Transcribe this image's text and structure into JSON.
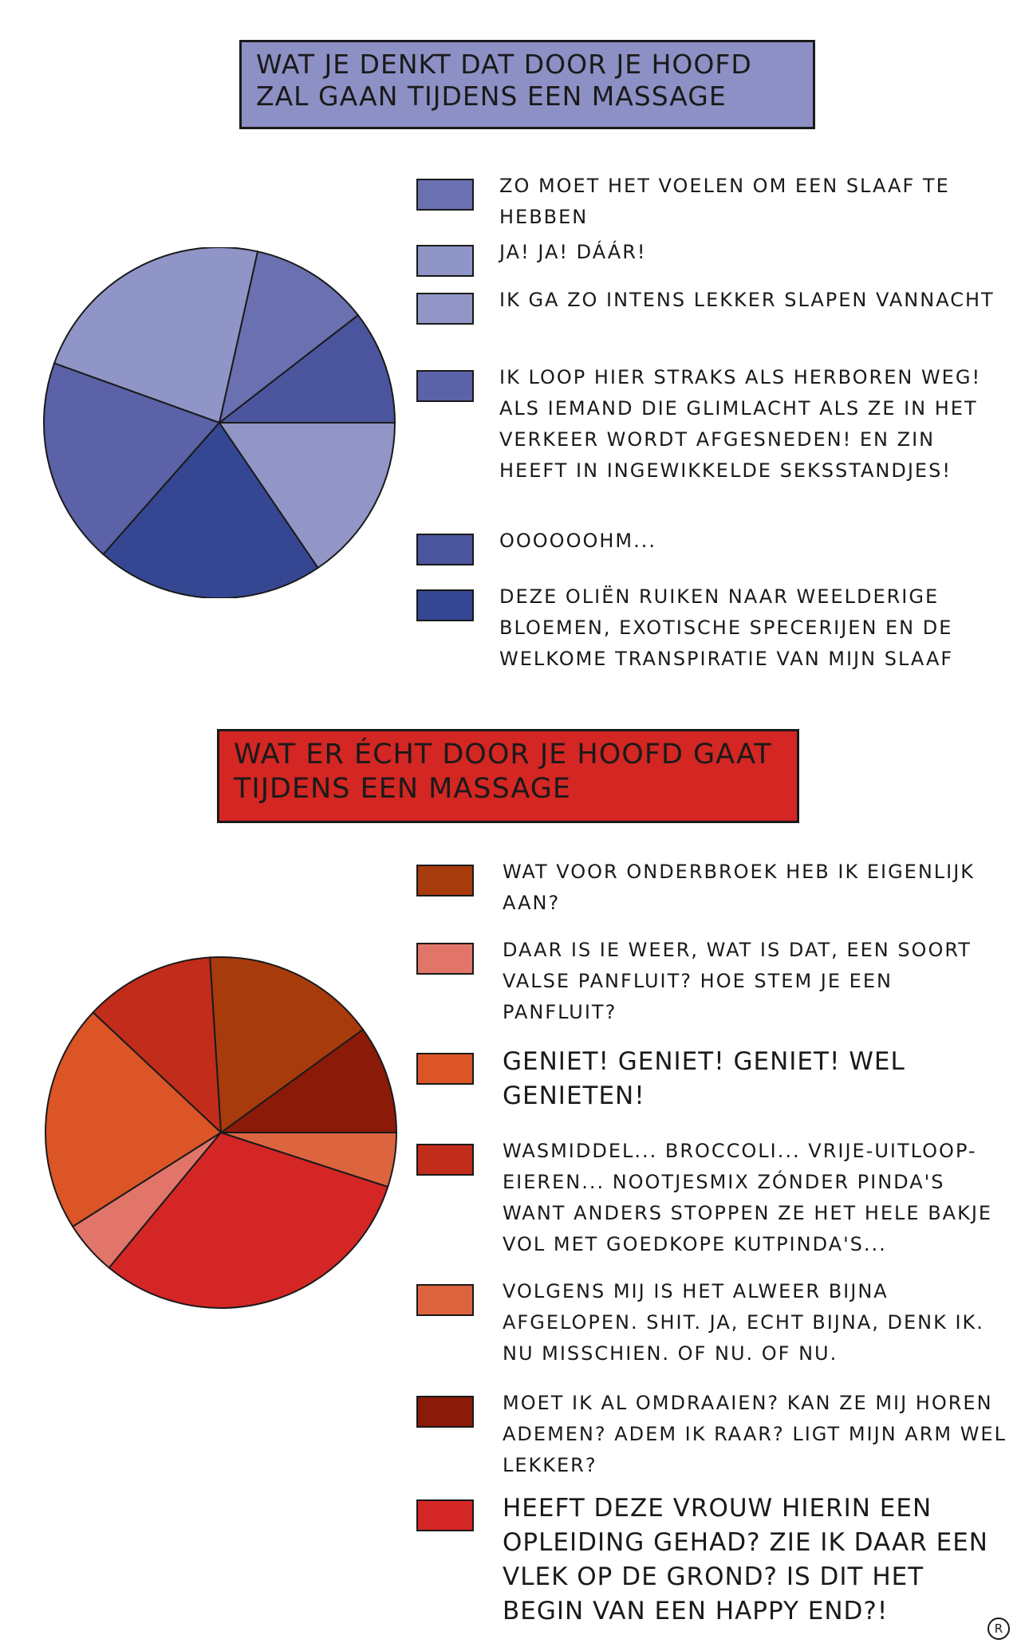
{
  "chart_data": [
    {
      "type": "pie",
      "title": "WAT JE DENKT DAT DOOR JE HOOFD ZAL GAAN TIJDENS EEN MASSAGE",
      "slices": [
        {
          "label": "ZO MOET HET VOELEN OM EEN SLAAF TE HEBBEN",
          "value": 11,
          "color": "#6a70b0"
        },
        {
          "label": "JA! JA! DÁÁR!",
          "value": 23,
          "color": "#8f95c6"
        },
        {
          "label": "IK GA ZO INTENS LEKKER SLAPEN VANNACHT",
          "value": 15.5,
          "color": "#9196c7"
        },
        {
          "label": "IK LOOP HIER STRAKS ALS HERBOREN WEG! ALS IEMAND DIE GLIMLACHT ALS ZE IN HET VERKEER WORDT AFGESNEDEN! EN ZIN HEEFT IN INGEWIKKELDE SEKSSTANDJES!",
          "value": 19,
          "color": "#5b62a7"
        },
        {
          "label": "OOOOOOHM...",
          "value": 10.5,
          "color": "#4b559e"
        },
        {
          "label": "DEZE OLIËN RUIKEN NAAR WEELDERIGE BLOEMEN, EXOTISCHE SPECERIJEN EN DE WELKOME TRANSPIRATIE VAN MIJN SLAAF",
          "value": 21,
          "color": "#354792"
        }
      ]
    },
    {
      "type": "pie",
      "title": "WAT ER ÉCHT DOOR JE HOOFD GAAT TIJDENS EEN MASSAGE",
      "slices": [
        {
          "label": "WAT VOOR ONDERBROEK HEB IK EIGENLIJK AAN?",
          "value": 16,
          "color": "#a83b0c"
        },
        {
          "label": "DAAR IS IE WEER, WAT IS DAT, EEN SOORT VALSE PANFLUIT? HOE STEM JE EEN PANFLUIT?",
          "value": 5,
          "color": "#e1756a"
        },
        {
          "label": "GENIET! GENIET! GENIET! WEL GENIETEN!",
          "value": 21,
          "color": "#db5527"
        },
        {
          "label": "WASMIDDEL... BROCCOLI... VRIJE-UITLOOP-EIEREN... NOOTJESMIX ZÓNDER PINDA'S WANT ANDERS STOPPEN ZE HET HELE BAKJE VOL MET GOEDKOPE KUTPINDA'S...",
          "value": 12,
          "color": "#c12d1a"
        },
        {
          "label": "VOLGENS MIJ IS HET ALWEER BIJNA AFGELOPEN. SHIT. JA, ECHT BIJNA, DENK IK. NU MISSCHIEN. OF NU. OF NU.",
          "value": 5,
          "color": "#dc6540"
        },
        {
          "label": "MOET IK AL OMDRAAIEN? KAN ZE MIJ HOREN ADEMEN? ADEM IK RAAR? LIGT MIJN ARM WEL LEKKER?",
          "value": 10,
          "color": "#8b1a09"
        },
        {
          "label": "HEEFT DEZE VROUW HIERIN EEN OPLEIDING GEHAD? ZIE IK DAAR EEN VLEK OP DE GROND? IS DIT HET BEGIN VAN EEN HAPPY END?!",
          "value": 31,
          "color": "#d42625"
        }
      ]
    }
  ],
  "signature": "R"
}
